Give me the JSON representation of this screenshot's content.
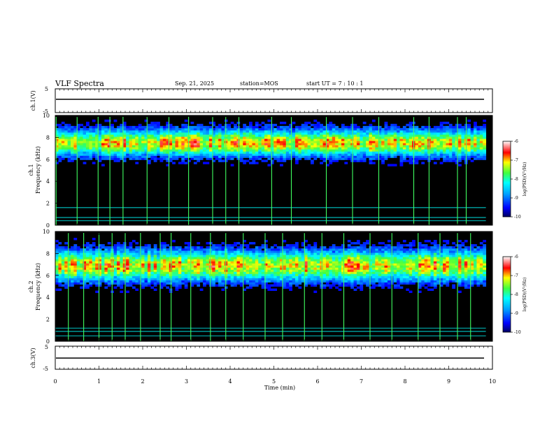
{
  "header": {
    "title": "VLF Spectra",
    "date": "Sep. 21, 2025",
    "station": "station=MOS",
    "start": "start UT =   7 : 10 : 1"
  },
  "chart_data": [
    {
      "type": "line",
      "ylabel": "ch.1(V)",
      "ylim": [
        -5,
        5
      ],
      "yticks": [
        "5",
        "-5"
      ],
      "xlim": [
        0,
        10
      ],
      "series": [
        {
          "values": [
            0.0
          ]
        }
      ]
    },
    {
      "type": "heatmap",
      "ylabel_line1": "ch.1",
      "ylabel_line2": "Frequency (kHz)",
      "ylim": [
        0,
        10
      ],
      "yticks": [
        "0",
        "2",
        "4",
        "6",
        "8",
        "10"
      ],
      "xlim": [
        0,
        9.85
      ],
      "band_center_khz": 7.5,
      "band_spread_khz": 1.2,
      "narrowband_lines_khz": [
        0.4,
        0.7,
        1.6
      ],
      "sferics_min": [
        0.02,
        0.5,
        0.98,
        1.25,
        1.55,
        2.1,
        2.6,
        3.05,
        3.6,
        3.9,
        4.2,
        4.95,
        5.4,
        6.2,
        6.8,
        7.4,
        8.2,
        8.55,
        9.2,
        9.4
      ],
      "colorbar": {
        "label": "log(PSD)(V²/Hz)",
        "range": [
          -10,
          -6
        ],
        "ticks": [
          "-6",
          "-7",
          "-8",
          "-9",
          "-10"
        ]
      }
    },
    {
      "type": "heatmap",
      "ylabel_line1": "ch.2",
      "ylabel_line2": "Frequency (kHz)",
      "ylim": [
        0,
        10
      ],
      "yticks": [
        "0",
        "2",
        "4",
        "6",
        "8",
        "10"
      ],
      "xlim": [
        0,
        9.85
      ],
      "band_center_khz": 6.9,
      "band_spread_khz": 1.4,
      "narrowband_lines_khz": [
        0.5,
        0.9,
        1.2
      ],
      "sferics_min": [
        0.3,
        0.65,
        1.0,
        1.3,
        1.6,
        1.95,
        2.4,
        2.65,
        3.1,
        3.55,
        3.9,
        4.3,
        4.8,
        5.2,
        5.7,
        6.1,
        6.6,
        7.2,
        7.7,
        8.3,
        8.8,
        9.2,
        9.5
      ],
      "colorbar": {
        "label": "log(PSD)(V²/Hz)",
        "range": [
          -10,
          -6
        ],
        "ticks": [
          "-6",
          "-7",
          "-8",
          "-9",
          "-10"
        ]
      }
    },
    {
      "type": "line",
      "ylabel": "ch.3(V)",
      "ylim": [
        -5,
        5
      ],
      "yticks": [
        "5",
        "-5"
      ],
      "xlim": [
        0,
        10
      ],
      "xlabel": "Time (min)",
      "xticks": [
        "0",
        "1",
        "2",
        "3",
        "4",
        "5",
        "6",
        "7",
        "8",
        "9",
        "10"
      ],
      "series": [
        {
          "values": [
            0.0
          ]
        }
      ]
    }
  ]
}
